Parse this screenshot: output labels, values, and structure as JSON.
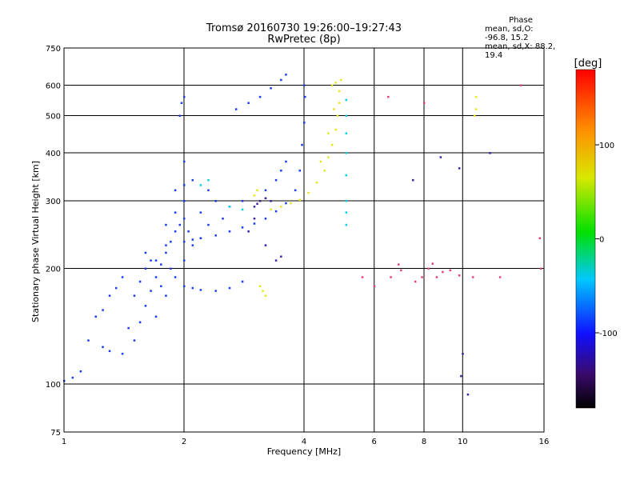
{
  "header": {
    "title": "Tromsø 20160730 19:26:00–19:27:43",
    "subtitle": "RwPretec (8p)"
  },
  "phase_info": {
    "heading": "Phase",
    "line_o": "mean, sd,O: -96.8, 15.2",
    "line_x": "mean, sd,X:  88.2, 19.4"
  },
  "colorbar": {
    "label": "[deg]",
    "ticks": [
      "100",
      "0",
      "-100"
    ],
    "tick_values": [
      100,
      0,
      -100
    ],
    "range": [
      -180,
      180
    ]
  },
  "chart_data": {
    "type": "scatter",
    "xlabel": "Frequency [MHz]",
    "ylabel": "Stationary phase Virtual Height [km]",
    "xscale": "log",
    "yscale": "log",
    "xlim": [
      1,
      16
    ],
    "ylim": [
      75,
      750
    ],
    "xticks": [
      1,
      2,
      4,
      6,
      8,
      10,
      16
    ],
    "xtick_labels": [
      "1",
      "2",
      "4",
      "6",
      "8",
      "10",
      "16"
    ],
    "yticks": [
      75,
      100,
      200,
      300,
      400,
      500,
      600,
      750
    ],
    "ytick_labels": [
      "75",
      "100",
      "200",
      "300",
      "400",
      "500",
      "600",
      "750"
    ],
    "grid": true,
    "colors": {
      "o_mode": "#1e3cff",
      "x_mode": "#e6e61e",
      "noise": "#ff4080"
    },
    "series": [
      {
        "color": "#1a3cf0",
        "points": [
          [
            1.0,
            102
          ],
          [
            1.05,
            104
          ],
          [
            1.1,
            108
          ],
          [
            1.15,
            130
          ],
          [
            1.2,
            150
          ],
          [
            1.25,
            156
          ],
          [
            1.3,
            170
          ],
          [
            1.35,
            178
          ],
          [
            1.4,
            190
          ],
          [
            1.25,
            125
          ],
          [
            1.3,
            122
          ],
          [
            1.4,
            120
          ],
          [
            1.5,
            130
          ],
          [
            1.55,
            145
          ],
          [
            1.6,
            160
          ],
          [
            1.65,
            175
          ],
          [
            1.7,
            190
          ],
          [
            1.75,
            205
          ],
          [
            1.8,
            220
          ],
          [
            1.85,
            235
          ],
          [
            1.9,
            250
          ],
          [
            1.95,
            260
          ],
          [
            2.0,
            270
          ],
          [
            1.7,
            150
          ],
          [
            1.8,
            170
          ],
          [
            1.9,
            190
          ],
          [
            2.0,
            210
          ],
          [
            2.1,
            230
          ],
          [
            2.2,
            240
          ],
          [
            2.0,
            235
          ],
          [
            2.1,
            238
          ],
          [
            2.2,
            240
          ],
          [
            2.4,
            244
          ],
          [
            2.6,
            250
          ],
          [
            2.8,
            256
          ],
          [
            3.0,
            262
          ],
          [
            3.2,
            270
          ],
          [
            3.4,
            282
          ],
          [
            3.6,
            296
          ],
          [
            3.8,
            320
          ],
          [
            3.9,
            360
          ],
          [
            3.95,
            420
          ],
          [
            4.0,
            480
          ],
          [
            4.02,
            560
          ],
          [
            4.0,
            600
          ],
          [
            2.0,
            180
          ],
          [
            2.1,
            178
          ],
          [
            2.2,
            176
          ],
          [
            2.4,
            175
          ],
          [
            2.6,
            178
          ],
          [
            2.8,
            185
          ],
          [
            1.6,
            200
          ],
          [
            1.7,
            210
          ],
          [
            1.8,
            230
          ],
          [
            1.9,
            280
          ],
          [
            2.0,
            300
          ],
          [
            2.0,
            330
          ],
          [
            2.0,
            380
          ],
          [
            1.95,
            500
          ],
          [
            1.97,
            540
          ],
          [
            2.0,
            560
          ],
          [
            2.2,
            280
          ],
          [
            2.4,
            300
          ],
          [
            2.6,
            290
          ],
          [
            2.8,
            300
          ],
          [
            2.7,
            520
          ],
          [
            2.9,
            540
          ],
          [
            3.1,
            560
          ],
          [
            3.3,
            590
          ],
          [
            3.5,
            620
          ],
          [
            3.6,
            640
          ],
          [
            3.2,
            320
          ],
          [
            3.4,
            340
          ],
          [
            3.5,
            360
          ],
          [
            3.6,
            380
          ],
          [
            1.5,
            170
          ],
          [
            1.6,
            220
          ],
          [
            1.8,
            260
          ],
          [
            1.9,
            320
          ],
          [
            2.1,
            340
          ],
          [
            2.3,
            320
          ],
          [
            1.45,
            140
          ],
          [
            1.55,
            185
          ],
          [
            1.65,
            210
          ],
          [
            1.75,
            180
          ],
          [
            1.85,
            200
          ],
          [
            2.05,
            250
          ],
          [
            2.3,
            260
          ],
          [
            2.5,
            270
          ]
        ]
      },
      {
        "color": "#e6e61e",
        "points": [
          [
            3.3,
            285
          ],
          [
            3.5,
            290
          ],
          [
            3.7,
            296
          ],
          [
            3.9,
            302
          ],
          [
            4.1,
            315
          ],
          [
            4.3,
            335
          ],
          [
            4.5,
            360
          ],
          [
            4.6,
            390
          ],
          [
            4.7,
            420
          ],
          [
            4.8,
            460
          ],
          [
            4.85,
            500
          ],
          [
            4.9,
            540
          ],
          [
            4.7,
            600
          ],
          [
            4.8,
            610
          ],
          [
            4.4,
            380
          ],
          [
            4.6,
            450
          ],
          [
            4.75,
            520
          ],
          [
            4.9,
            580
          ],
          [
            4.95,
            620
          ],
          [
            3.1,
            180
          ],
          [
            3.15,
            175
          ],
          [
            3.2,
            170
          ],
          [
            3.0,
            310
          ],
          [
            3.05,
            320
          ],
          [
            10.7,
            500
          ],
          [
            10.8,
            520
          ],
          [
            10.8,
            560
          ]
        ]
      },
      {
        "color": "#00d0e0",
        "points": [
          [
            5.1,
            300
          ],
          [
            5.1,
            350
          ],
          [
            5.1,
            400
          ],
          [
            5.1,
            450
          ],
          [
            5.1,
            500
          ],
          [
            5.1,
            550
          ],
          [
            5.1,
            280
          ],
          [
            5.1,
            260
          ],
          [
            2.2,
            330
          ],
          [
            2.3,
            340
          ],
          [
            2.6,
            290
          ],
          [
            2.8,
            285
          ]
        ]
      },
      {
        "color": "#4020a0",
        "points": [
          [
            3.1,
            300
          ],
          [
            3.2,
            305
          ],
          [
            3.3,
            300
          ],
          [
            3.0,
            290
          ],
          [
            3.05,
            295
          ],
          [
            3.2,
            230
          ],
          [
            3.4,
            210
          ],
          [
            3.5,
            215
          ],
          [
            2.9,
            250
          ],
          [
            3.0,
            270
          ],
          [
            7.5,
            340
          ],
          [
            8.8,
            390
          ],
          [
            9.8,
            365
          ],
          [
            10.0,
            120
          ],
          [
            9.9,
            105
          ],
          [
            10.3,
            94
          ],
          [
            11.7,
            400
          ]
        ]
      },
      {
        "color": "#e04080",
        "points": [
          [
            5.6,
            190
          ],
          [
            6.0,
            180
          ],
          [
            6.6,
            190
          ],
          [
            6.9,
            205
          ],
          [
            7.0,
            198
          ],
          [
            7.6,
            185
          ],
          [
            7.9,
            190
          ],
          [
            8.2,
            200
          ],
          [
            8.4,
            206
          ],
          [
            8.6,
            190
          ],
          [
            8.9,
            196
          ],
          [
            9.3,
            198
          ],
          [
            9.8,
            192
          ],
          [
            10.6,
            190
          ],
          [
            12.4,
            190
          ],
          [
            14.0,
            600
          ],
          [
            15.6,
            240
          ],
          [
            15.7,
            200
          ],
          [
            8.0,
            540
          ],
          [
            6.5,
            560
          ]
        ]
      }
    ]
  }
}
